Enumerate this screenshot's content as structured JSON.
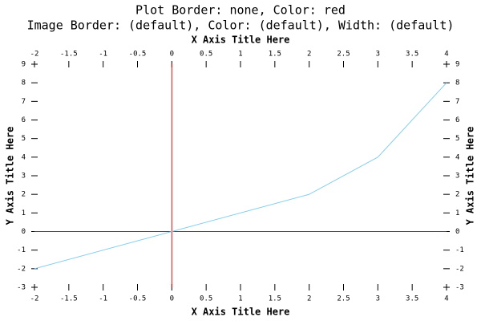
{
  "chart_data": {
    "type": "line",
    "title": "Plot Border: none, Color: red",
    "subtitle": "Image Border: (default), Color: (default), Width: (default)",
    "x_label": "X Axis Title Here",
    "y_label": "Y Axis Title Here",
    "x": [
      -2,
      0,
      2,
      3,
      4
    ],
    "series": [
      {
        "color": "#87ceeb",
        "values": [
          -2,
          0,
          2,
          4,
          8
        ]
      }
    ],
    "xlim": [
      -2,
      4
    ],
    "xticks": [
      -2,
      -1.5,
      -1,
      -0.5,
      0,
      0.5,
      1,
      1.5,
      2,
      2.5,
      3,
      3.5,
      4
    ],
    "ylim": [
      -3,
      9
    ],
    "yticks": [
      -3,
      -2,
      -1,
      0,
      1,
      2,
      3,
      4,
      5,
      6,
      7,
      8,
      9
    ],
    "zero_lines": true,
    "zero_line_color": "#ff0000"
  }
}
